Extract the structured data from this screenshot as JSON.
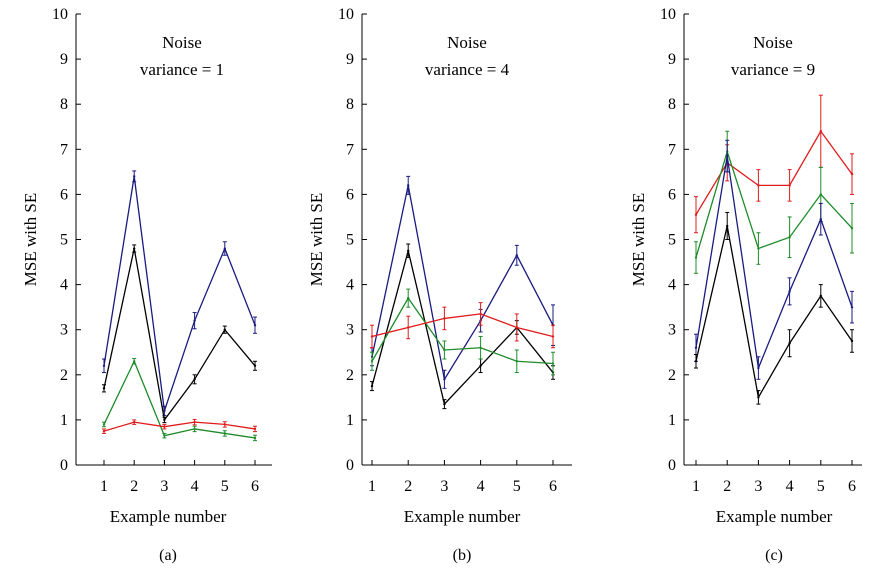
{
  "chart_data": [
    {
      "type": "line",
      "panel_label": "(a)",
      "annotation_line1": "Noise",
      "annotation_line2": "variance = 1",
      "xlabel": "Example number",
      "ylabel": "MSE with SE",
      "x": [
        1,
        2,
        3,
        4,
        5,
        6
      ],
      "xticks": [
        "1",
        "2",
        "3",
        "4",
        "5",
        "6"
      ],
      "ylim": [
        0,
        10
      ],
      "yticks": [
        "0",
        "1",
        "2",
        "3",
        "4",
        "5",
        "6",
        "7",
        "8",
        "9",
        "10"
      ],
      "series": [
        {
          "color": "#1a1a80",
          "values": [
            2.2,
            6.4,
            1.2,
            3.2,
            4.8,
            3.1
          ],
          "errors": [
            0.15,
            0.12,
            0.1,
            0.18,
            0.15,
            0.18
          ]
        },
        {
          "color": "#000000",
          "values": [
            1.7,
            4.8,
            1.0,
            1.9,
            3.0,
            2.2
          ],
          "errors": [
            0.08,
            0.08,
            0.06,
            0.1,
            0.08,
            0.1
          ]
        },
        {
          "color": "#1e8c2a",
          "values": [
            0.9,
            2.3,
            0.65,
            0.8,
            0.7,
            0.6
          ],
          "errors": [
            0.05,
            0.06,
            0.05,
            0.06,
            0.06,
            0.06
          ]
        },
        {
          "color": "#e01b1b",
          "values": [
            0.75,
            0.95,
            0.85,
            0.95,
            0.9,
            0.8
          ],
          "errors": [
            0.05,
            0.05,
            0.05,
            0.06,
            0.06,
            0.06
          ]
        }
      ]
    },
    {
      "type": "line",
      "panel_label": "(b)",
      "annotation_line1": "Noise",
      "annotation_line2": "variance = 4",
      "xlabel": "Example number",
      "ylabel": "MSE with SE",
      "x": [
        1,
        2,
        3,
        4,
        5,
        6
      ],
      "xticks": [
        "1",
        "2",
        "3",
        "4",
        "5",
        "6"
      ],
      "ylim": [
        0,
        10
      ],
      "yticks": [
        "0",
        "1",
        "2",
        "3",
        "4",
        "5",
        "6",
        "7",
        "8",
        "9",
        "10"
      ],
      "series": [
        {
          "color": "#1a1a80",
          "values": [
            2.4,
            6.2,
            1.9,
            3.2,
            4.65,
            3.1
          ],
          "errors": [
            0.2,
            0.2,
            0.2,
            0.25,
            0.22,
            0.45
          ]
        },
        {
          "color": "#000000",
          "values": [
            1.75,
            4.75,
            1.35,
            2.2,
            3.05,
            2.05
          ],
          "errors": [
            0.1,
            0.15,
            0.1,
            0.15,
            0.15,
            0.15
          ]
        },
        {
          "color": "#1e8c2a",
          "values": [
            2.3,
            3.7,
            2.55,
            2.6,
            2.3,
            2.25
          ],
          "errors": [
            0.2,
            0.2,
            0.2,
            0.25,
            0.25,
            0.25
          ]
        },
        {
          "color": "#e01b1b",
          "values": [
            2.85,
            3.05,
            3.25,
            3.35,
            3.05,
            2.85
          ],
          "errors": [
            0.25,
            0.25,
            0.25,
            0.25,
            0.3,
            0.25
          ]
        }
      ]
    },
    {
      "type": "line",
      "panel_label": "(c)",
      "annotation_line1": "Noise",
      "annotation_line2": "variance = 9",
      "xlabel": "Example number",
      "ylabel": "MSE with SE",
      "x": [
        1,
        2,
        3,
        4,
        5,
        6
      ],
      "xticks": [
        "1",
        "2",
        "3",
        "4",
        "5",
        "6"
      ],
      "ylim": [
        0,
        10
      ],
      "yticks": [
        "0",
        "1",
        "2",
        "3",
        "4",
        "5",
        "6",
        "7",
        "8",
        "9",
        "10"
      ],
      "series": [
        {
          "color": "#e01b1b",
          "values": [
            5.55,
            6.7,
            6.2,
            6.2,
            7.4,
            6.45
          ],
          "errors": [
            0.4,
            0.4,
            0.35,
            0.35,
            0.8,
            0.45
          ]
        },
        {
          "color": "#1e8c2a",
          "values": [
            4.6,
            6.95,
            4.8,
            5.05,
            6.0,
            5.25
          ],
          "errors": [
            0.35,
            0.45,
            0.35,
            0.45,
            0.6,
            0.55
          ]
        },
        {
          "color": "#1a1a80",
          "values": [
            2.6,
            6.85,
            2.15,
            3.85,
            5.45,
            3.5
          ],
          "errors": [
            0.3,
            0.35,
            0.25,
            0.3,
            0.35,
            0.35
          ]
        },
        {
          "color": "#000000",
          "values": [
            2.3,
            5.3,
            1.5,
            2.7,
            3.75,
            2.75
          ],
          "errors": [
            0.15,
            0.3,
            0.15,
            0.3,
            0.25,
            0.25
          ]
        }
      ]
    }
  ]
}
